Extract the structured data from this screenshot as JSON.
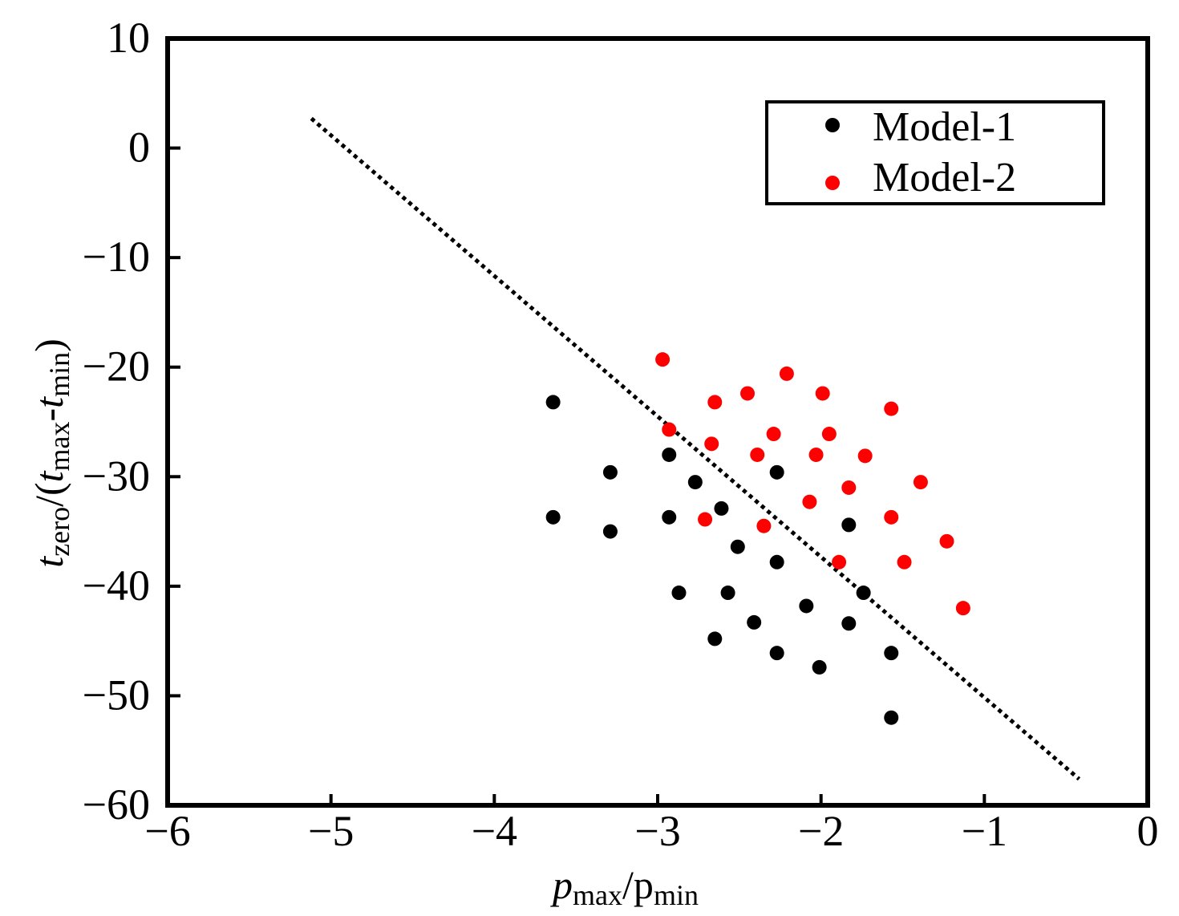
{
  "chart_data": {
    "type": "scatter",
    "title": "",
    "xlabel": {
      "var": "p",
      "var_sub": "max",
      "sep": "/p",
      "den_sub": "min"
    },
    "ylabel": {
      "open_var": "t",
      "open_sub": "zero",
      "mid": "/(",
      "var1": "t",
      "sub1": "max",
      "dash": "-",
      "var2": "t",
      "sub2": "min",
      "close": ")"
    },
    "xlim": [
      -6,
      0
    ],
    "ylim": [
      -60,
      10
    ],
    "x_ticks": [
      -6,
      -5,
      -4,
      -3,
      -2,
      -1,
      0
    ],
    "y_ticks": [
      10,
      0,
      -10,
      -20,
      -30,
      -40,
      -50,
      -60
    ],
    "x_tick_labels": [
      "−6",
      "−5",
      "−4",
      "−3",
      "−2",
      "−1",
      "0"
    ],
    "y_tick_labels": [
      "10",
      "0",
      "−10",
      "−20",
      "−30",
      "−40",
      "−50",
      "−60"
    ],
    "grid": false,
    "legend_position": "top-right",
    "series": [
      {
        "name": "Model-1",
        "color": "#000000",
        "points": [
          [
            -3.64,
            -23.2
          ],
          [
            -3.29,
            -29.6
          ],
          [
            -3.64,
            -33.7
          ],
          [
            -3.29,
            -35.0
          ],
          [
            -2.93,
            -28.0
          ],
          [
            -2.77,
            -30.5
          ],
          [
            -2.93,
            -33.7
          ],
          [
            -2.61,
            -32.9
          ],
          [
            -2.51,
            -36.4
          ],
          [
            -2.27,
            -29.6
          ],
          [
            -2.27,
            -37.8
          ],
          [
            -1.83,
            -34.4
          ],
          [
            -2.87,
            -40.6
          ],
          [
            -2.57,
            -40.6
          ],
          [
            -2.09,
            -41.8
          ],
          [
            -1.74,
            -40.6
          ],
          [
            -2.41,
            -43.3
          ],
          [
            -1.83,
            -43.4
          ],
          [
            -2.65,
            -44.8
          ],
          [
            -2.27,
            -46.1
          ],
          [
            -2.01,
            -47.4
          ],
          [
            -1.57,
            -46.1
          ],
          [
            -1.57,
            -52.0
          ]
        ]
      },
      {
        "name": "Model-2",
        "color": "#ff0000",
        "points": [
          [
            -2.97,
            -19.3
          ],
          [
            -2.21,
            -20.6
          ],
          [
            -2.65,
            -23.2
          ],
          [
            -2.45,
            -22.4
          ],
          [
            -1.99,
            -22.4
          ],
          [
            -1.57,
            -23.8
          ],
          [
            -2.93,
            -25.7
          ],
          [
            -2.67,
            -27.0
          ],
          [
            -2.29,
            -26.1
          ],
          [
            -1.95,
            -26.1
          ],
          [
            -2.39,
            -28.0
          ],
          [
            -2.03,
            -28.0
          ],
          [
            -1.73,
            -28.1
          ],
          [
            -1.83,
            -31.0
          ],
          [
            -1.39,
            -30.5
          ],
          [
            -2.07,
            -32.3
          ],
          [
            -2.71,
            -33.9
          ],
          [
            -2.35,
            -34.5
          ],
          [
            -1.57,
            -33.7
          ],
          [
            -1.23,
            -35.9
          ],
          [
            -1.89,
            -37.8
          ],
          [
            -1.49,
            -37.8
          ],
          [
            -1.13,
            -42.0
          ]
        ]
      }
    ],
    "lines": [
      {
        "style": "dotted",
        "color": "#000000",
        "from": [
          -5.12,
          2.7
        ],
        "to": [
          -0.42,
          -57.6
        ]
      }
    ]
  }
}
